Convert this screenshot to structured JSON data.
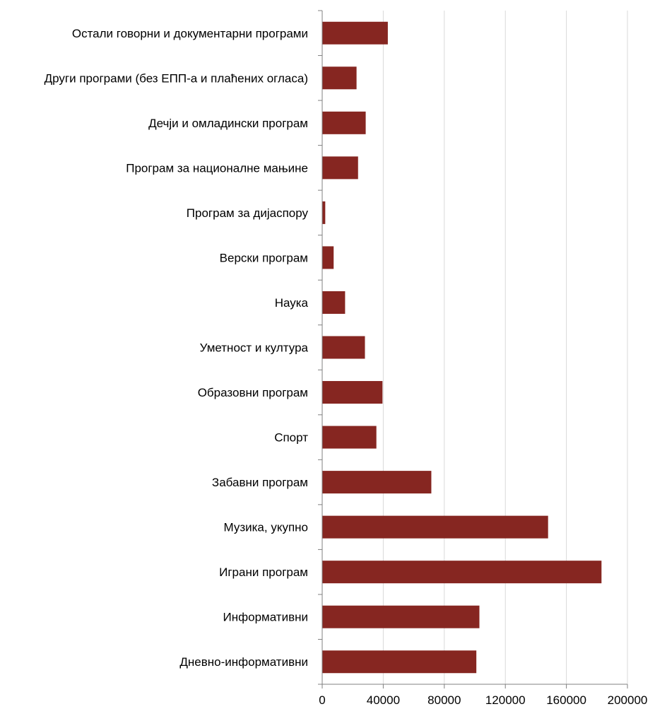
{
  "chart_data": {
    "type": "bar",
    "orientation": "horizontal",
    "categories": [
      "Остали говорни и документарни програми",
      "Други програми (без ЕПП-а и плаћених огласа)",
      "Дечји и омладински програм",
      "Програм за националне мањине",
      "Програм за дијаспору",
      "Верски програм",
      "Наука",
      "Уметност и култура",
      "Образовни програм",
      "Спорт",
      "Забавни програм",
      "Музика, укупно",
      "Играни програм",
      "Информативни",
      "Дневно-информативни"
    ],
    "values": [
      43000,
      22500,
      28500,
      23500,
      2000,
      7500,
      15000,
      28000,
      39500,
      35500,
      71500,
      148000,
      183000,
      103000,
      101000
    ],
    "xlim": [
      0,
      200000
    ],
    "xticks": [
      "0",
      "40000",
      "80000",
      "120000",
      "160000",
      "200000"
    ],
    "grid": true,
    "legend": "none",
    "title": "",
    "xlabel": "",
    "ylabel": "",
    "bar_color": "#862621",
    "grid_color": "#d9d9d9",
    "axis_color": "#808080"
  }
}
